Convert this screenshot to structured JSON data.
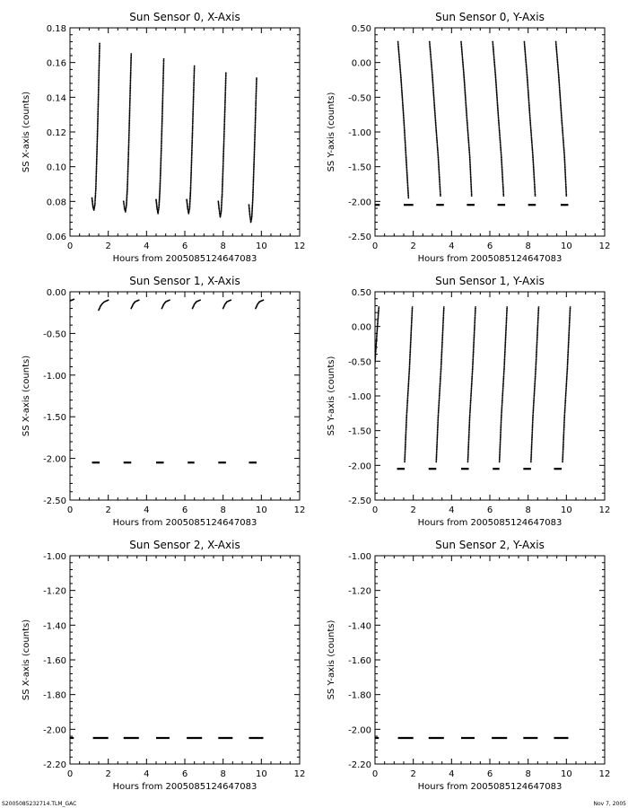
{
  "footer": {
    "left": "S2005085232714.TLM_GAC",
    "right": "Nov  7, 2005"
  },
  "chart_data": [
    {
      "type": "scatter",
      "title": "Sun Sensor 0, X-Axis",
      "xlabel": "Hours from 2005085124647083",
      "ylabel": "SS X-axis (counts)",
      "xlim": [
        0,
        12
      ],
      "ylim": [
        0.06,
        0.18
      ],
      "xticks": [
        0,
        2,
        4,
        6,
        8,
        10,
        12
      ],
      "xtick_labels": [
        "0",
        "2",
        "4",
        "6",
        "8",
        "10",
        "12"
      ],
      "yticks": [
        0.06,
        0.08,
        0.1,
        0.12,
        0.14,
        0.16,
        0.18
      ],
      "ytick_labels": [
        "0.06",
        "0.08",
        "0.10",
        "0.12",
        "0.14",
        "0.16",
        "0.18"
      ],
      "series": [
        {
          "x": [
            1.15,
            1.2,
            1.25,
            1.3,
            1.35,
            1.4,
            1.45,
            1.5,
            1.55
          ],
          "y": [
            0.082,
            0.077,
            0.075,
            0.078,
            0.087,
            0.105,
            0.125,
            0.148,
            0.171
          ]
        },
        {
          "x": [
            2.8,
            2.85,
            2.9,
            2.95,
            3.0,
            3.05,
            3.1,
            3.15,
            3.2
          ],
          "y": [
            0.08,
            0.076,
            0.074,
            0.078,
            0.088,
            0.105,
            0.124,
            0.145,
            0.165
          ]
        },
        {
          "x": [
            4.5,
            4.55,
            4.6,
            4.65,
            4.7,
            4.75,
            4.8,
            4.85,
            4.9
          ],
          "y": [
            0.081,
            0.076,
            0.073,
            0.077,
            0.087,
            0.103,
            0.121,
            0.141,
            0.162
          ]
        },
        {
          "x": [
            6.1,
            6.15,
            6.2,
            6.25,
            6.3,
            6.35,
            6.4,
            6.45,
            6.5
          ],
          "y": [
            0.081,
            0.076,
            0.073,
            0.076,
            0.086,
            0.102,
            0.12,
            0.139,
            0.158
          ]
        },
        {
          "x": [
            7.75,
            7.8,
            7.85,
            7.9,
            7.95,
            8.0,
            8.05,
            8.1,
            8.15
          ],
          "y": [
            0.08,
            0.075,
            0.071,
            0.074,
            0.084,
            0.1,
            0.117,
            0.135,
            0.154
          ]
        },
        {
          "x": [
            9.35,
            9.4,
            9.45,
            9.5,
            9.55,
            9.6,
            9.65,
            9.7,
            9.75
          ],
          "y": [
            0.078,
            0.072,
            0.068,
            0.071,
            0.081,
            0.097,
            0.114,
            0.132,
            0.151
          ]
        }
      ]
    },
    {
      "type": "scatter",
      "title": "Sun Sensor 0, Y-Axis",
      "xlabel": "Hours from 2005085124647083",
      "ylabel": "SS Y-axis (counts)",
      "xlim": [
        0,
        12
      ],
      "ylim": [
        -2.5,
        0.5
      ],
      "xticks": [
        0,
        2,
        4,
        6,
        8,
        10,
        12
      ],
      "xtick_labels": [
        "0",
        "2",
        "4",
        "6",
        "8",
        "10",
        "12"
      ],
      "yticks": [
        -2.5,
        -2.0,
        -1.5,
        -1.0,
        -0.5,
        0.0,
        0.5
      ],
      "ytick_labels": [
        "-2.50",
        "-2.00",
        "-1.50",
        "-1.00",
        "-0.50",
        "0.00",
        "0.50"
      ],
      "series": [
        {
          "x": [
            1.2,
            1.35,
            1.5,
            1.62,
            1.75
          ],
          "y": [
            0.3,
            -0.2,
            -0.8,
            -1.35,
            -1.95
          ]
        },
        {
          "x": [
            2.85,
            3.0,
            3.15,
            3.3,
            3.42
          ],
          "y": [
            0.3,
            -0.2,
            -0.8,
            -1.35,
            -1.92
          ]
        },
        {
          "x": [
            4.5,
            4.65,
            4.8,
            4.95,
            5.05
          ],
          "y": [
            0.3,
            -0.2,
            -0.8,
            -1.35,
            -1.92
          ]
        },
        {
          "x": [
            6.15,
            6.3,
            6.45,
            6.6,
            6.72
          ],
          "y": [
            0.3,
            -0.2,
            -0.8,
            -1.35,
            -1.92
          ]
        },
        {
          "x": [
            7.8,
            7.95,
            8.1,
            8.25,
            8.37
          ],
          "y": [
            0.3,
            -0.2,
            -0.8,
            -1.35,
            -1.92
          ]
        },
        {
          "x": [
            9.45,
            9.6,
            9.75,
            9.9,
            10.0
          ],
          "y": [
            0.3,
            -0.2,
            -0.8,
            -1.35,
            -1.92
          ]
        }
      ],
      "segments": [
        {
          "x0": 0.0,
          "x1": 0.25,
          "y": -2.05
        },
        {
          "x0": 1.5,
          "x1": 2.0,
          "y": -2.05
        },
        {
          "x0": 3.2,
          "x1": 3.6,
          "y": -2.05
        },
        {
          "x0": 4.8,
          "x1": 5.2,
          "y": -2.05
        },
        {
          "x0": 6.4,
          "x1": 6.8,
          "y": -2.05
        },
        {
          "x0": 8.0,
          "x1": 8.4,
          "y": -2.05
        },
        {
          "x0": 9.7,
          "x1": 10.1,
          "y": -2.05
        }
      ]
    },
    {
      "type": "scatter",
      "title": "Sun Sensor 1, X-Axis",
      "xlabel": "Hours from 2005085124647083",
      "ylabel": "SS X-axis (counts)",
      "xlim": [
        0,
        12
      ],
      "ylim": [
        -2.5,
        0.0
      ],
      "xticks": [
        0,
        2,
        4,
        6,
        8,
        10,
        12
      ],
      "xtick_labels": [
        "0",
        "2",
        "4",
        "6",
        "8",
        "10",
        "12"
      ],
      "yticks": [
        -2.5,
        -2.0,
        -1.5,
        -1.0,
        -0.5,
        0.0
      ],
      "ytick_labels": [
        "-2.50",
        "-2.00",
        "-1.50",
        "-1.00",
        "-0.50",
        "0.00"
      ],
      "series": [
        {
          "x": [
            0.0,
            0.1,
            0.2
          ],
          "y": [
            -0.11,
            -0.1,
            -0.09
          ]
        },
        {
          "x": [
            1.5,
            1.6,
            1.7,
            1.8,
            1.9,
            2.0
          ],
          "y": [
            -0.22,
            -0.17,
            -0.14,
            -0.12,
            -0.11,
            -0.1
          ]
        },
        {
          "x": [
            3.2,
            3.3,
            3.4,
            3.5,
            3.6
          ],
          "y": [
            -0.2,
            -0.15,
            -0.12,
            -0.11,
            -0.1
          ]
        },
        {
          "x": [
            4.8,
            4.9,
            5.0,
            5.1,
            5.2
          ],
          "y": [
            -0.2,
            -0.15,
            -0.12,
            -0.11,
            -0.1
          ]
        },
        {
          "x": [
            6.4,
            6.5,
            6.6,
            6.7,
            6.8
          ],
          "y": [
            -0.2,
            -0.15,
            -0.12,
            -0.11,
            -0.1
          ]
        },
        {
          "x": [
            8.0,
            8.1,
            8.2,
            8.3,
            8.4
          ],
          "y": [
            -0.2,
            -0.15,
            -0.12,
            -0.11,
            -0.1
          ]
        },
        {
          "x": [
            9.7,
            9.8,
            9.9,
            10.0,
            10.1
          ],
          "y": [
            -0.2,
            -0.15,
            -0.12,
            -0.11,
            -0.1
          ]
        }
      ],
      "segments": [
        {
          "x0": 1.15,
          "x1": 1.55,
          "y": -2.05
        },
        {
          "x0": 2.8,
          "x1": 3.2,
          "y": -2.05
        },
        {
          "x0": 4.5,
          "x1": 4.9,
          "y": -2.05
        },
        {
          "x0": 6.15,
          "x1": 6.5,
          "y": -2.05
        },
        {
          "x0": 7.75,
          "x1": 8.15,
          "y": -2.05
        },
        {
          "x0": 9.35,
          "x1": 9.75,
          "y": -2.05
        }
      ]
    },
    {
      "type": "scatter",
      "title": "Sun Sensor 1, Y-Axis",
      "xlabel": "Hours from 2005085124647083",
      "ylabel": "SS Y-axis (counts)",
      "xlim": [
        0,
        12
      ],
      "ylim": [
        -2.5,
        0.5
      ],
      "xticks": [
        0,
        2,
        4,
        6,
        8,
        10,
        12
      ],
      "xtick_labels": [
        "0",
        "2",
        "4",
        "6",
        "8",
        "10",
        "12"
      ],
      "yticks": [
        -2.5,
        -2.0,
        -1.5,
        -1.0,
        -0.5,
        0.0,
        0.5
      ],
      "ytick_labels": [
        "-2.50",
        "-2.00",
        "-1.50",
        "-1.00",
        "-0.50",
        "0.00",
        "0.50"
      ],
      "series": [
        {
          "x": [
            0.0,
            0.1,
            0.2
          ],
          "y": [
            -0.52,
            -0.1,
            0.28
          ]
        },
        {
          "x": [
            1.55,
            1.65,
            1.8,
            1.95
          ],
          "y": [
            -1.95,
            -1.3,
            -0.6,
            0.28
          ]
        },
        {
          "x": [
            3.2,
            3.3,
            3.45,
            3.6
          ],
          "y": [
            -1.95,
            -1.3,
            -0.6,
            0.28
          ]
        },
        {
          "x": [
            4.85,
            4.95,
            5.1,
            5.25
          ],
          "y": [
            -1.95,
            -1.3,
            -0.6,
            0.28
          ]
        },
        {
          "x": [
            6.5,
            6.6,
            6.75,
            6.9
          ],
          "y": [
            -1.95,
            -1.3,
            -0.6,
            0.28
          ]
        },
        {
          "x": [
            8.15,
            8.25,
            8.4,
            8.55
          ],
          "y": [
            -1.95,
            -1.3,
            -0.6,
            0.28
          ]
        },
        {
          "x": [
            9.8,
            9.9,
            10.05,
            10.2
          ],
          "y": [
            -1.95,
            -1.3,
            -0.6,
            0.28
          ]
        }
      ],
      "segments": [
        {
          "x0": 1.15,
          "x1": 1.55,
          "y": -2.05
        },
        {
          "x0": 2.8,
          "x1": 3.2,
          "y": -2.05
        },
        {
          "x0": 4.5,
          "x1": 4.9,
          "y": -2.05
        },
        {
          "x0": 6.15,
          "x1": 6.5,
          "y": -2.05
        },
        {
          "x0": 7.75,
          "x1": 8.15,
          "y": -2.05
        },
        {
          "x0": 9.35,
          "x1": 9.75,
          "y": -2.05
        }
      ]
    },
    {
      "type": "scatter",
      "title": "Sun Sensor 2, X-Axis",
      "xlabel": "Hours from 2005085124647083",
      "ylabel": "SS X-axis (counts)",
      "xlim": [
        0,
        12
      ],
      "ylim": [
        -2.2,
        -1.0
      ],
      "xticks": [
        0,
        2,
        4,
        6,
        8,
        10,
        12
      ],
      "xtick_labels": [
        "0",
        "2",
        "4",
        "6",
        "8",
        "10",
        "12"
      ],
      "yticks": [
        -2.2,
        -2.0,
        -1.8,
        -1.6,
        -1.4,
        -1.2,
        -1.0
      ],
      "ytick_labels": [
        "-2.20",
        "-2.00",
        "-1.80",
        "-1.60",
        "-1.40",
        "-1.20",
        "-1.00"
      ],
      "series": [],
      "segments": [
        {
          "x0": 0.0,
          "x1": 0.2,
          "y": -2.05
        },
        {
          "x0": 1.2,
          "x1": 2.0,
          "y": -2.05
        },
        {
          "x0": 2.8,
          "x1": 3.6,
          "y": -2.05
        },
        {
          "x0": 4.5,
          "x1": 5.2,
          "y": -2.05
        },
        {
          "x0": 6.1,
          "x1": 6.9,
          "y": -2.05
        },
        {
          "x0": 7.75,
          "x1": 8.5,
          "y": -2.05
        },
        {
          "x0": 9.35,
          "x1": 10.1,
          "y": -2.05
        }
      ]
    },
    {
      "type": "scatter",
      "title": "Sun Sensor 2, Y-Axis",
      "xlabel": "Hours from 2005085124647083",
      "ylabel": "SS Y-axis (counts)",
      "xlim": [
        0,
        12
      ],
      "ylim": [
        -2.2,
        -1.0
      ],
      "xticks": [
        0,
        2,
        4,
        6,
        8,
        10,
        12
      ],
      "xtick_labels": [
        "0",
        "2",
        "4",
        "6",
        "8",
        "10",
        "12"
      ],
      "yticks": [
        -2.2,
        -2.0,
        -1.8,
        -1.6,
        -1.4,
        -1.2,
        -1.0
      ],
      "ytick_labels": [
        "-2.20",
        "-2.00",
        "-1.80",
        "-1.60",
        "-1.40",
        "-1.20",
        "-1.00"
      ],
      "series": [],
      "segments": [
        {
          "x0": 0.0,
          "x1": 0.2,
          "y": -2.05
        },
        {
          "x0": 1.2,
          "x1": 2.0,
          "y": -2.05
        },
        {
          "x0": 2.8,
          "x1": 3.6,
          "y": -2.05
        },
        {
          "x0": 4.5,
          "x1": 5.2,
          "y": -2.05
        },
        {
          "x0": 6.1,
          "x1": 6.9,
          "y": -2.05
        },
        {
          "x0": 7.75,
          "x1": 8.5,
          "y": -2.05
        },
        {
          "x0": 9.35,
          "x1": 10.1,
          "y": -2.05
        }
      ]
    }
  ]
}
